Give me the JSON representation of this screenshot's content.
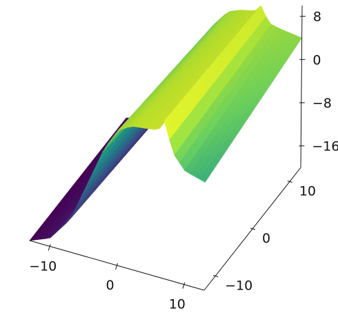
{
  "chart_data": {
    "type": "surface3d",
    "title": "",
    "xlabel": "",
    "ylabel": "",
    "zlabel": "",
    "colormap": "viridis",
    "colormap_stops": [
      "#440154",
      "#482777",
      "#3f4a8a",
      "#31678e",
      "#26838f",
      "#1f9d8a",
      "#6cce5a",
      "#b6de2b",
      "#fee825"
    ],
    "xlim": [
      -13,
      13
    ],
    "ylim": [
      -13,
      13
    ],
    "zlim": [
      -20,
      10
    ],
    "x_ticks": [
      {
        "value": -10,
        "label": "−10"
      },
      {
        "value": 0,
        "label": "0"
      },
      {
        "value": 10,
        "label": "10"
      }
    ],
    "y_ticks": [
      {
        "value": -10,
        "label": "−10"
      },
      {
        "value": 0,
        "label": "0"
      },
      {
        "value": 10,
        "label": "10"
      }
    ],
    "z_ticks": [
      {
        "value": 8,
        "label": "8"
      },
      {
        "value": 0,
        "label": "0"
      },
      {
        "value": -8,
        "label": "−8"
      },
      {
        "value": -16,
        "label": "−16"
      }
    ],
    "grid": false,
    "surface_profile": {
      "description_of_shape": "sigmoid rise along one horizontal axis with a narrow ridge near x≈7",
      "x_samples": [
        -13,
        -10,
        -7,
        -4,
        -2,
        0,
        2,
        4,
        6,
        7,
        8,
        10,
        13
      ],
      "z_at_low_y": [
        -20,
        -18.5,
        -14,
        -5,
        1,
        5,
        6.5,
        6.8,
        7.2,
        9.5,
        4,
        1,
        0
      ],
      "z_at_high_y": [
        -20,
        -19,
        -16,
        -9,
        -3,
        2,
        5,
        6,
        6.5,
        8,
        5,
        4.5,
        4
      ]
    }
  }
}
